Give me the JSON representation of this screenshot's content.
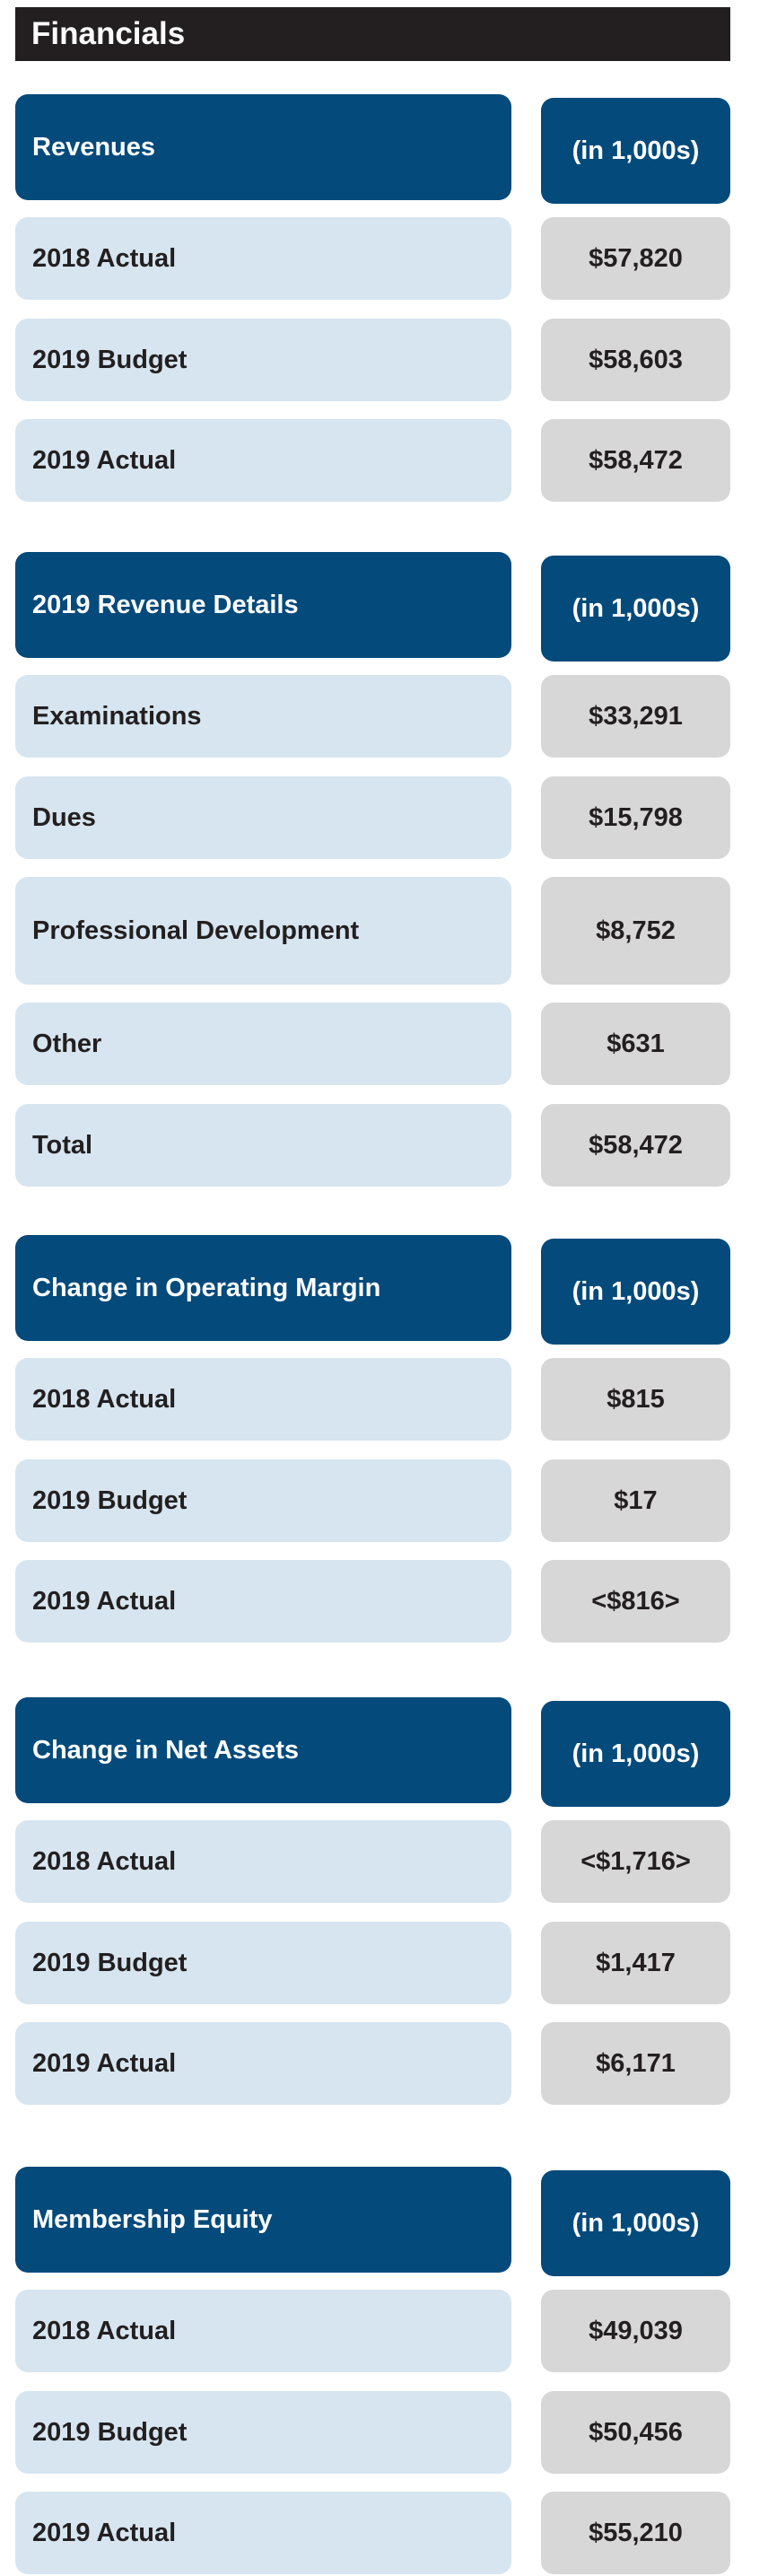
{
  "title": "Financials",
  "sections": [
    {
      "header": {
        "label": "Revenues",
        "unit": "(in 1,000s)"
      },
      "rows": [
        {
          "label": "2018 Actual",
          "value": "$57,820"
        },
        {
          "label": "2019 Budget",
          "value": "$58,603"
        },
        {
          "label": "2019 Actual",
          "value": "$58,472"
        }
      ]
    },
    {
      "header": {
        "label": "2019 Revenue Details",
        "unit": "(in 1,000s)"
      },
      "rows": [
        {
          "label": "Examinations",
          "value": "$33,291"
        },
        {
          "label": "Dues",
          "value": "$15,798"
        },
        {
          "label": "Professional Development",
          "value": "$8,752"
        },
        {
          "label": "Other",
          "value": "$631"
        },
        {
          "label": "Total",
          "value": "$58,472"
        }
      ]
    },
    {
      "header": {
        "label": "Change in Operating Margin",
        "unit": "(in 1,000s)"
      },
      "rows": [
        {
          "label": "2018 Actual",
          "value": "$815"
        },
        {
          "label": "2019 Budget",
          "value": "$17"
        },
        {
          "label": "2019 Actual",
          "value": "<$816>"
        }
      ]
    },
    {
      "header": {
        "label": "Change in Net Assets",
        "unit": "(in 1,000s)"
      },
      "rows": [
        {
          "label": "2018 Actual",
          "value": "<$1,716>"
        },
        {
          "label": "2019 Budget",
          "value": "$1,417"
        },
        {
          "label": "2019 Actual",
          "value": "$6,171"
        }
      ]
    },
    {
      "header": {
        "label": "Membership Equity",
        "unit": "(in 1,000s)"
      },
      "rows": [
        {
          "label": "2018 Actual",
          "value": "$49,039"
        },
        {
          "label": "2019 Budget",
          "value": "$50,456"
        },
        {
          "label": "2019 Actual",
          "value": "$55,210"
        }
      ]
    }
  ],
  "colors": {
    "title_bg": "#231f20",
    "header_bg": "#044a7b",
    "label_bg": "#d6e5ef",
    "value_bg": "#d8d7d8"
  }
}
